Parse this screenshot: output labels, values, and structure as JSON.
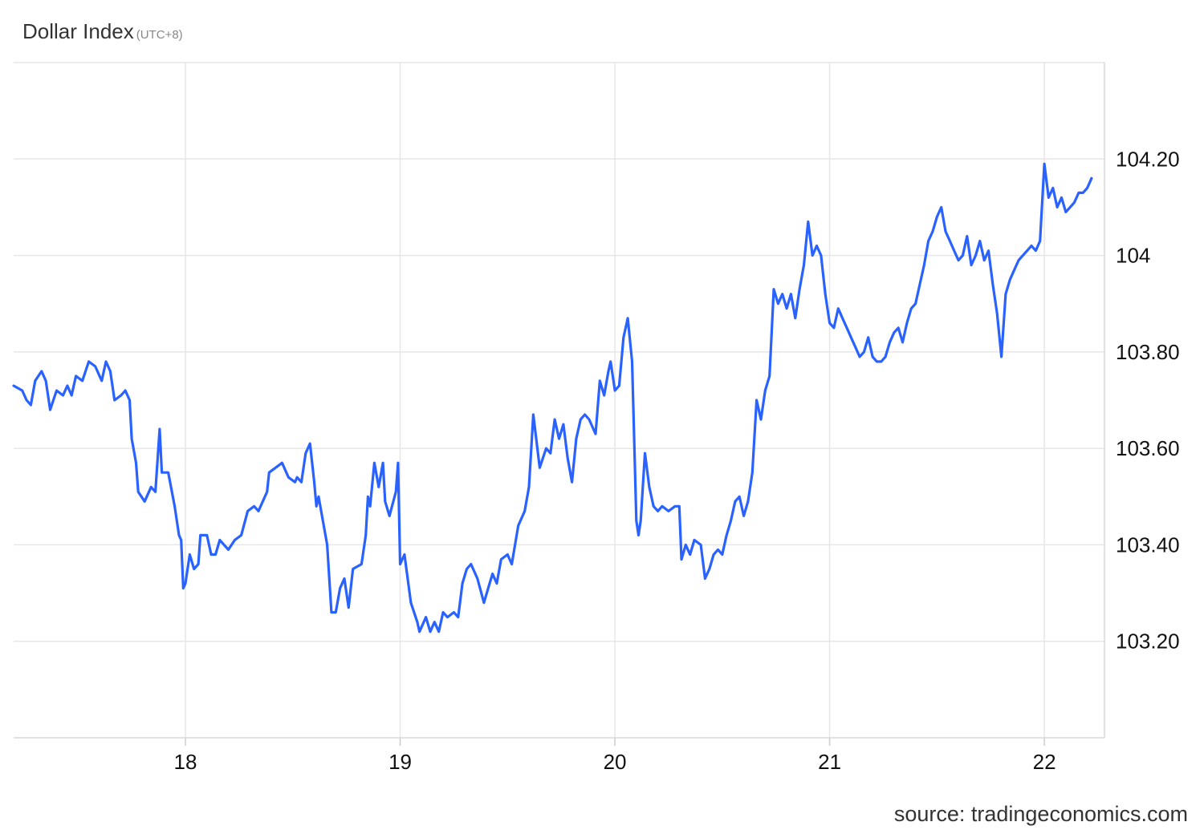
{
  "header": {
    "title": "Dollar Index",
    "timezone": "(UTC+8)"
  },
  "source": "source: tradingeconomics.com",
  "colors": {
    "line": "#2962ff",
    "grid": "#e6e6e6",
    "text": "#333333",
    "subtext": "#888888"
  },
  "chart_data": {
    "type": "line",
    "title": "Dollar Index",
    "subtitle": "(UTC+8)",
    "xlabel": "",
    "ylabel": "",
    "x_ticks": [
      {
        "x": 18,
        "label": "18"
      },
      {
        "x": 19,
        "label": "19"
      },
      {
        "x": 20,
        "label": "20"
      },
      {
        "x": 21,
        "label": "21"
      },
      {
        "x": 22,
        "label": "22"
      }
    ],
    "y_ticks": [
      {
        "y": 103.2,
        "label": "103.20"
      },
      {
        "y": 103.4,
        "label": "103.40"
      },
      {
        "y": 103.6,
        "label": "103.60"
      },
      {
        "y": 103.8,
        "label": "103.80"
      },
      {
        "y": 104.0,
        "label": "104"
      },
      {
        "y": 104.2,
        "label": "104.20"
      }
    ],
    "xlim": [
      17.2,
      22.28
    ],
    "ylim": [
      103.0,
      104.4
    ],
    "grid": true,
    "y_axis_side": "right",
    "series": [
      {
        "color": "#2962ff",
        "points": [
          [
            17.2,
            103.73
          ],
          [
            17.24,
            103.72
          ],
          [
            17.26,
            103.7
          ],
          [
            17.28,
            103.69
          ],
          [
            17.3,
            103.74
          ],
          [
            17.33,
            103.76
          ],
          [
            17.35,
            103.74
          ],
          [
            17.37,
            103.68
          ],
          [
            17.4,
            103.72
          ],
          [
            17.43,
            103.71
          ],
          [
            17.45,
            103.73
          ],
          [
            17.47,
            103.71
          ],
          [
            17.49,
            103.75
          ],
          [
            17.52,
            103.74
          ],
          [
            17.55,
            103.78
          ],
          [
            17.58,
            103.77
          ],
          [
            17.61,
            103.74
          ],
          [
            17.63,
            103.78
          ],
          [
            17.65,
            103.76
          ],
          [
            17.67,
            103.7
          ],
          [
            17.7,
            103.71
          ],
          [
            17.72,
            103.72
          ],
          [
            17.74,
            103.7
          ],
          [
            17.75,
            103.62
          ],
          [
            17.77,
            103.57
          ],
          [
            17.78,
            103.51
          ],
          [
            17.81,
            103.49
          ],
          [
            17.84,
            103.52
          ],
          [
            17.86,
            103.51
          ],
          [
            17.88,
            103.64
          ],
          [
            17.89,
            103.55
          ],
          [
            17.92,
            103.55
          ],
          [
            17.95,
            103.48
          ],
          [
            17.97,
            103.42
          ],
          [
            17.98,
            103.41
          ],
          [
            17.99,
            103.31
          ],
          [
            18.0,
            103.32
          ],
          [
            18.02,
            103.38
          ],
          [
            18.04,
            103.35
          ],
          [
            18.06,
            103.36
          ],
          [
            18.07,
            103.42
          ],
          [
            18.1,
            103.42
          ],
          [
            18.12,
            103.38
          ],
          [
            18.14,
            103.38
          ],
          [
            18.16,
            103.41
          ],
          [
            18.2,
            103.39
          ],
          [
            18.23,
            103.41
          ],
          [
            18.26,
            103.42
          ],
          [
            18.29,
            103.47
          ],
          [
            18.32,
            103.48
          ],
          [
            18.34,
            103.47
          ],
          [
            18.38,
            103.51
          ],
          [
            18.39,
            103.55
          ],
          [
            18.42,
            103.56
          ],
          [
            18.45,
            103.57
          ],
          [
            18.48,
            103.54
          ],
          [
            18.51,
            103.53
          ],
          [
            18.52,
            103.54
          ],
          [
            18.54,
            103.53
          ],
          [
            18.56,
            103.59
          ],
          [
            18.58,
            103.61
          ],
          [
            18.6,
            103.53
          ],
          [
            18.61,
            103.48
          ],
          [
            18.62,
            103.5
          ],
          [
            18.66,
            103.4
          ],
          [
            18.68,
            103.26
          ],
          [
            18.7,
            103.26
          ],
          [
            18.72,
            103.31
          ],
          [
            18.74,
            103.33
          ],
          [
            18.76,
            103.27
          ],
          [
            18.78,
            103.35
          ],
          [
            18.82,
            103.36
          ],
          [
            18.84,
            103.42
          ],
          [
            18.85,
            103.5
          ],
          [
            18.86,
            103.48
          ],
          [
            18.88,
            103.57
          ],
          [
            18.9,
            103.52
          ],
          [
            18.92,
            103.57
          ],
          [
            18.93,
            103.49
          ],
          [
            18.95,
            103.46
          ],
          [
            18.98,
            103.51
          ],
          [
            18.99,
            103.57
          ],
          [
            19.0,
            103.36
          ],
          [
            19.02,
            103.38
          ],
          [
            19.05,
            103.28
          ],
          [
            19.08,
            103.24
          ],
          [
            19.09,
            103.22
          ],
          [
            19.1,
            103.23
          ],
          [
            19.12,
            103.25
          ],
          [
            19.14,
            103.22
          ],
          [
            19.16,
            103.24
          ],
          [
            19.18,
            103.22
          ],
          [
            19.2,
            103.26
          ],
          [
            19.22,
            103.25
          ],
          [
            19.25,
            103.26
          ],
          [
            19.27,
            103.25
          ],
          [
            19.29,
            103.32
          ],
          [
            19.31,
            103.35
          ],
          [
            19.33,
            103.36
          ],
          [
            19.36,
            103.33
          ],
          [
            19.39,
            103.28
          ],
          [
            19.41,
            103.31
          ],
          [
            19.43,
            103.34
          ],
          [
            19.45,
            103.32
          ],
          [
            19.47,
            103.37
          ],
          [
            19.5,
            103.38
          ],
          [
            19.52,
            103.36
          ],
          [
            19.55,
            103.44
          ],
          [
            19.58,
            103.47
          ],
          [
            19.6,
            103.52
          ],
          [
            19.62,
            103.67
          ],
          [
            19.65,
            103.56
          ],
          [
            19.68,
            103.6
          ],
          [
            19.7,
            103.59
          ],
          [
            19.72,
            103.66
          ],
          [
            19.74,
            103.62
          ],
          [
            19.76,
            103.65
          ],
          [
            19.78,
            103.58
          ],
          [
            19.8,
            103.53
          ],
          [
            19.82,
            103.62
          ],
          [
            19.84,
            103.66
          ],
          [
            19.86,
            103.67
          ],
          [
            19.88,
            103.66
          ],
          [
            19.91,
            103.63
          ],
          [
            19.93,
            103.74
          ],
          [
            19.95,
            103.71
          ],
          [
            19.97,
            103.76
          ],
          [
            19.98,
            103.78
          ],
          [
            20.0,
            103.72
          ],
          [
            20.02,
            103.73
          ],
          [
            20.04,
            103.83
          ],
          [
            20.06,
            103.87
          ],
          [
            20.08,
            103.78
          ],
          [
            20.1,
            103.45
          ],
          [
            20.11,
            103.42
          ],
          [
            20.12,
            103.45
          ],
          [
            20.14,
            103.59
          ],
          [
            20.16,
            103.52
          ],
          [
            20.18,
            103.48
          ],
          [
            20.2,
            103.47
          ],
          [
            20.22,
            103.48
          ],
          [
            20.25,
            103.47
          ],
          [
            20.28,
            103.48
          ],
          [
            20.3,
            103.48
          ],
          [
            20.31,
            103.37
          ],
          [
            20.33,
            103.4
          ],
          [
            20.35,
            103.38
          ],
          [
            20.37,
            103.41
          ],
          [
            20.4,
            103.4
          ],
          [
            20.42,
            103.33
          ],
          [
            20.44,
            103.35
          ],
          [
            20.46,
            103.38
          ],
          [
            20.48,
            103.39
          ],
          [
            20.5,
            103.38
          ],
          [
            20.52,
            103.42
          ],
          [
            20.54,
            103.45
          ],
          [
            20.56,
            103.49
          ],
          [
            20.58,
            103.5
          ],
          [
            20.6,
            103.46
          ],
          [
            20.62,
            103.49
          ],
          [
            20.64,
            103.55
          ],
          [
            20.66,
            103.7
          ],
          [
            20.68,
            103.66
          ],
          [
            20.7,
            103.72
          ],
          [
            20.72,
            103.75
          ],
          [
            20.74,
            103.93
          ],
          [
            20.76,
            103.9
          ],
          [
            20.78,
            103.92
          ],
          [
            20.8,
            103.89
          ],
          [
            20.82,
            103.92
          ],
          [
            20.84,
            103.87
          ],
          [
            20.86,
            103.93
          ],
          [
            20.88,
            103.98
          ],
          [
            20.9,
            104.07
          ],
          [
            20.92,
            104.0
          ],
          [
            20.94,
            104.02
          ],
          [
            20.96,
            104.0
          ],
          [
            20.98,
            103.92
          ],
          [
            21.0,
            103.86
          ],
          [
            21.02,
            103.85
          ],
          [
            21.04,
            103.89
          ],
          [
            21.06,
            103.87
          ],
          [
            21.08,
            103.85
          ],
          [
            21.1,
            103.83
          ],
          [
            21.12,
            103.81
          ],
          [
            21.14,
            103.79
          ],
          [
            21.16,
            103.8
          ],
          [
            21.18,
            103.83
          ],
          [
            21.2,
            103.79
          ],
          [
            21.22,
            103.78
          ],
          [
            21.24,
            103.78
          ],
          [
            21.26,
            103.79
          ],
          [
            21.28,
            103.82
          ],
          [
            21.3,
            103.84
          ],
          [
            21.32,
            103.85
          ],
          [
            21.34,
            103.82
          ],
          [
            21.36,
            103.86
          ],
          [
            21.38,
            103.89
          ],
          [
            21.4,
            103.9
          ],
          [
            21.42,
            103.94
          ],
          [
            21.44,
            103.98
          ],
          [
            21.46,
            104.03
          ],
          [
            21.48,
            104.05
          ],
          [
            21.5,
            104.08
          ],
          [
            21.52,
            104.1
          ],
          [
            21.54,
            104.05
          ],
          [
            21.56,
            104.03
          ],
          [
            21.58,
            104.01
          ],
          [
            21.6,
            103.99
          ],
          [
            21.62,
            104.0
          ],
          [
            21.64,
            104.04
          ],
          [
            21.66,
            103.98
          ],
          [
            21.68,
            104.0
          ],
          [
            21.7,
            104.03
          ],
          [
            21.72,
            103.99
          ],
          [
            21.74,
            104.01
          ],
          [
            21.76,
            103.94
          ],
          [
            21.78,
            103.88
          ],
          [
            21.8,
            103.79
          ],
          [
            21.82,
            103.92
          ],
          [
            21.84,
            103.95
          ],
          [
            21.86,
            103.97
          ],
          [
            21.88,
            103.99
          ],
          [
            21.9,
            104.0
          ],
          [
            21.92,
            104.01
          ],
          [
            21.94,
            104.02
          ],
          [
            21.96,
            104.01
          ],
          [
            21.98,
            104.03
          ],
          [
            22.0,
            104.19
          ],
          [
            22.02,
            104.12
          ],
          [
            22.04,
            104.14
          ],
          [
            22.06,
            104.1
          ],
          [
            22.08,
            104.12
          ],
          [
            22.1,
            104.09
          ],
          [
            22.12,
            104.1
          ],
          [
            22.14,
            104.11
          ],
          [
            22.16,
            104.13
          ],
          [
            22.18,
            104.13
          ],
          [
            22.2,
            104.14
          ],
          [
            22.22,
            104.16
          ]
        ]
      }
    ]
  }
}
